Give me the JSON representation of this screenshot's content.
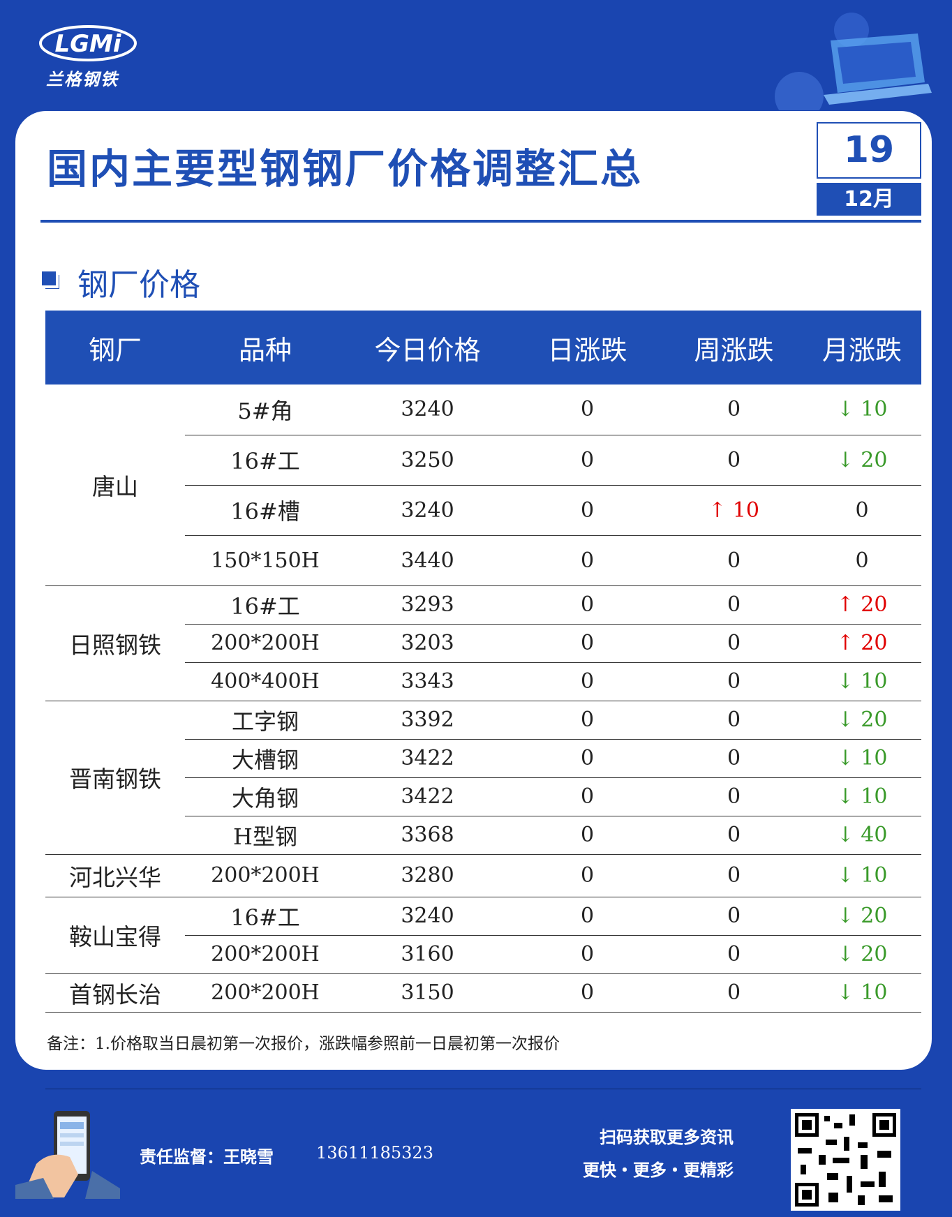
{
  "header": {
    "logo_text": "LGMi",
    "logo_subtitle": "兰格钢铁",
    "title": "国内主要型钢钢厂价格调整汇总",
    "day": "19",
    "month": "12月"
  },
  "section_title": "钢厂价格",
  "table": {
    "columns": [
      "钢厂",
      "品种",
      "今日价格",
      "日涨跌",
      "周涨跌",
      "月涨跌"
    ],
    "groups": [
      {
        "mill": "唐山",
        "rows": [
          [
            "5#角",
            "3240",
            "0",
            "0",
            "↓ 10"
          ],
          [
            "16#工",
            "3250",
            "0",
            "0",
            "↓ 20"
          ],
          [
            "16#槽",
            "3240",
            "0",
            "↑ 10",
            "0"
          ],
          [
            "150*150H",
            "3440",
            "0",
            "0",
            "0"
          ]
        ]
      },
      {
        "mill": "日照钢铁",
        "rows": [
          [
            "16#工",
            "3293",
            "0",
            "0",
            "↑ 20"
          ],
          [
            "200*200H",
            "3203",
            "0",
            "0",
            "↑ 20"
          ],
          [
            "400*400H",
            "3343",
            "0",
            "0",
            "↓ 10"
          ]
        ]
      },
      {
        "mill": "晋南钢铁",
        "rows": [
          [
            "工字钢",
            "3392",
            "0",
            "0",
            "↓ 20"
          ],
          [
            "大槽钢",
            "3422",
            "0",
            "0",
            "↓ 10"
          ],
          [
            "大角钢",
            "3422",
            "0",
            "0",
            "↓ 10"
          ],
          [
            "H型钢",
            "3368",
            "0",
            "0",
            "↓ 40"
          ]
        ]
      },
      {
        "mill": "河北兴华",
        "rows": [
          [
            "200*200H",
            "3280",
            "0",
            "0",
            "↓ 10"
          ]
        ]
      },
      {
        "mill": "鞍山宝得",
        "rows": [
          [
            "16#工",
            "3240",
            "0",
            "0",
            "↓ 20"
          ],
          [
            "200*200H",
            "3160",
            "0",
            "0",
            "↓ 20"
          ]
        ]
      },
      {
        "mill": "首钢长治",
        "rows": [
          [
            "200*200H",
            "3150",
            "0",
            "0",
            "↓ 10"
          ]
        ]
      }
    ],
    "note": "备注：1.价格取当日晨初第一次报价，涨跌幅参照前一日晨初第一次报价"
  },
  "footer": {
    "supervisor": "责任监督：王晓雪",
    "phone": "13611185323",
    "qr_caption": "扫码获取更多资讯",
    "slogan": "更快・更多・更精彩"
  }
}
